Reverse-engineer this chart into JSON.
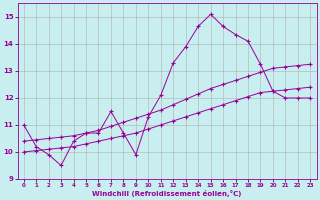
{
  "xlabel": "Windchill (Refroidissement éolien,°C)",
  "bg_color": "#c8eef0",
  "grid_color": "#b0b0b0",
  "line_color": "#990099",
  "xlim": [
    -0.5,
    23.5
  ],
  "ylim": [
    9.0,
    15.5
  ],
  "xticks": [
    0,
    1,
    2,
    3,
    4,
    5,
    6,
    7,
    8,
    9,
    10,
    11,
    12,
    13,
    14,
    15,
    16,
    17,
    18,
    19,
    20,
    21,
    22,
    23
  ],
  "yticks": [
    9,
    10,
    11,
    12,
    13,
    14,
    15
  ],
  "series1_x": [
    0,
    1,
    2,
    3,
    4,
    5,
    6,
    7,
    8,
    9,
    10,
    11,
    12,
    13,
    14,
    15,
    16,
    17,
    18,
    19,
    20,
    21,
    22,
    23
  ],
  "series1_y": [
    11.0,
    10.2,
    9.9,
    9.5,
    10.4,
    10.7,
    10.7,
    11.5,
    10.7,
    9.9,
    11.3,
    12.1,
    13.3,
    13.9,
    14.65,
    15.1,
    14.65,
    14.35,
    14.1,
    13.25,
    12.25,
    12.0,
    12.0,
    12.0
  ],
  "series2_x": [
    0,
    1,
    2,
    3,
    4,
    5,
    6,
    7,
    8,
    9,
    10,
    11,
    12,
    13,
    14,
    15,
    16,
    17,
    18,
    19,
    20,
    21,
    22,
    23
  ],
  "series2_y": [
    10.0,
    10.05,
    10.1,
    10.15,
    10.2,
    10.3,
    10.4,
    10.5,
    10.6,
    10.7,
    10.85,
    11.0,
    11.15,
    11.3,
    11.45,
    11.6,
    11.75,
    11.9,
    12.05,
    12.2,
    12.25,
    12.3,
    12.35,
    12.4
  ],
  "series3_x": [
    0,
    1,
    2,
    3,
    4,
    5,
    6,
    7,
    8,
    9,
    10,
    11,
    12,
    13,
    14,
    15,
    16,
    17,
    18,
    19,
    20,
    21,
    22,
    23
  ],
  "series3_y": [
    10.4,
    10.45,
    10.5,
    10.55,
    10.6,
    10.7,
    10.8,
    10.95,
    11.1,
    11.25,
    11.4,
    11.55,
    11.75,
    11.95,
    12.15,
    12.35,
    12.5,
    12.65,
    12.8,
    12.95,
    13.1,
    13.15,
    13.2,
    13.25
  ]
}
